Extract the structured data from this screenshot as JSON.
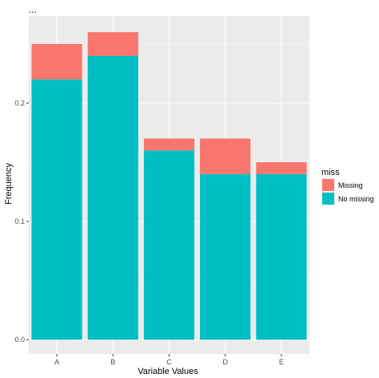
{
  "chart_data": {
    "type": "bar",
    "stacked": true,
    "title": "...",
    "xlabel": "Variable Values",
    "ylabel": "Frequency",
    "categories": [
      "A",
      "B",
      "C",
      "D",
      "E"
    ],
    "series": [
      {
        "name": "No missing",
        "color": "#00BFC4",
        "values": [
          0.22,
          0.24,
          0.16,
          0.14,
          0.14
        ]
      },
      {
        "name": "Missing",
        "color": "#F8766D",
        "values": [
          0.03,
          0.02,
          0.01,
          0.03,
          0.01
        ]
      }
    ],
    "ylim": [
      0,
      0.26
    ],
    "yticks": [
      0.0,
      0.1,
      0.2
    ],
    "ytick_labels": [
      "0.0",
      "0.1",
      "0.2"
    ],
    "grid": true,
    "legend": {
      "title": "miss",
      "position": "right",
      "order": [
        "Missing",
        "No missing"
      ]
    },
    "panel_background": "#EBEBEB",
    "grid_color": "#FFFFFF"
  }
}
